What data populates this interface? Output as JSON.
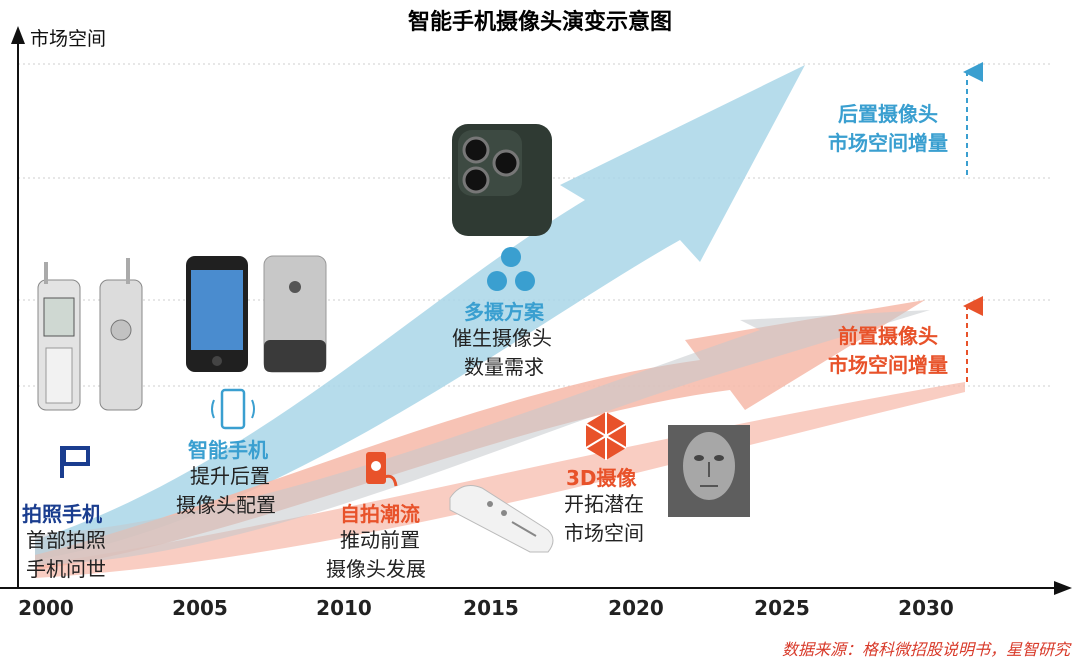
{
  "title": "智能手机摄像头演变示意图",
  "y_axis_label": "市场空间",
  "x_ticks": [
    "2000",
    "2005",
    "2010",
    "2015",
    "2020",
    "2025",
    "2030"
  ],
  "stages": {
    "photo_phone": {
      "title": "拍照手机",
      "line1": "首部拍照",
      "line2": "手机问世"
    },
    "smartphone": {
      "title": "智能手机",
      "line1": "提升后置",
      "line2": "摄像头配置"
    },
    "selfie": {
      "title": "自拍潮流",
      "line1": "推动前置",
      "line2": "摄像头发展"
    },
    "multi_camera": {
      "title": "多摄方案",
      "line1": "催生摄像头",
      "line2": "数量需求"
    },
    "three_d": {
      "title": "3D摄像",
      "line1": "开拓潜在",
      "line2": "市场空间"
    }
  },
  "growth_labels": {
    "rear": {
      "line1": "后置摄像头",
      "line2": "市场空间增量"
    },
    "front": {
      "line1": "前置摄像头",
      "line2": "市场空间增量"
    }
  },
  "source": "数据来源：格科微招股说明书，星智研究",
  "colors": {
    "blue_arrow": "#a9d6e8",
    "red_arrow": "#f6b8a8",
    "gray_band": "#c4c8cc",
    "blue_text": "#3a9fd0",
    "navy_text": "#1a3d8f",
    "red_text": "#e8522a"
  }
}
